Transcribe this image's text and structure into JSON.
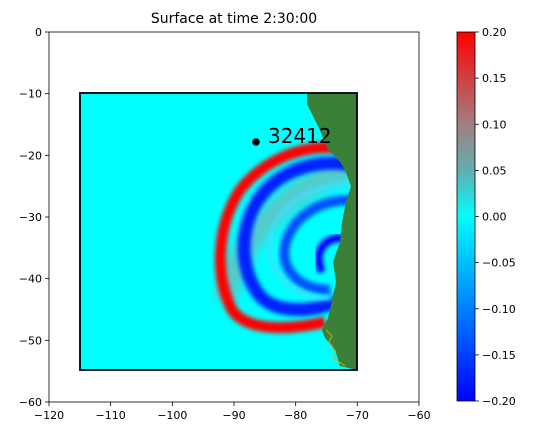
{
  "chart_data": {
    "type": "heatmap",
    "title": "Surface at time 2:30:00",
    "xlabel": "",
    "ylabel": "",
    "xlim": [
      -120,
      -60
    ],
    "ylim": [
      -60,
      0
    ],
    "x_ticks": [
      -120,
      -110,
      -100,
      -90,
      -80,
      -70,
      -60
    ],
    "y_ticks": [
      0,
      -10,
      -20,
      -30,
      -40,
      -50,
      -60
    ],
    "x_tick_labels": [
      "−120",
      "−110",
      "−100",
      "−90",
      "−80",
      "−70",
      "−60"
    ],
    "y_tick_labels": [
      "0",
      "−10",
      "−20",
      "−30",
      "−40",
      "−50",
      "−60"
    ],
    "domain_box": {
      "x": [
        -115,
        -70
      ],
      "y": [
        -55,
        -10
      ]
    },
    "station": {
      "label": "32412",
      "x": -86.4,
      "y": -17.9
    },
    "colorbar": {
      "min": -0.2,
      "max": 0.2,
      "ticks": [
        0.2,
        0.15,
        0.1,
        0.05,
        0.0,
        -0.05,
        -0.1,
        -0.15,
        -0.2
      ],
      "tick_labels": [
        "0.20",
        "0.15",
        "0.10",
        "0.05",
        "0.00",
        "−0.05",
        "−0.10",
        "−0.15",
        "−0.20"
      ],
      "colors": [
        "#0000ff",
        "#00ffff",
        "#ff0000"
      ]
    },
    "land_color": "#3b8038"
  }
}
